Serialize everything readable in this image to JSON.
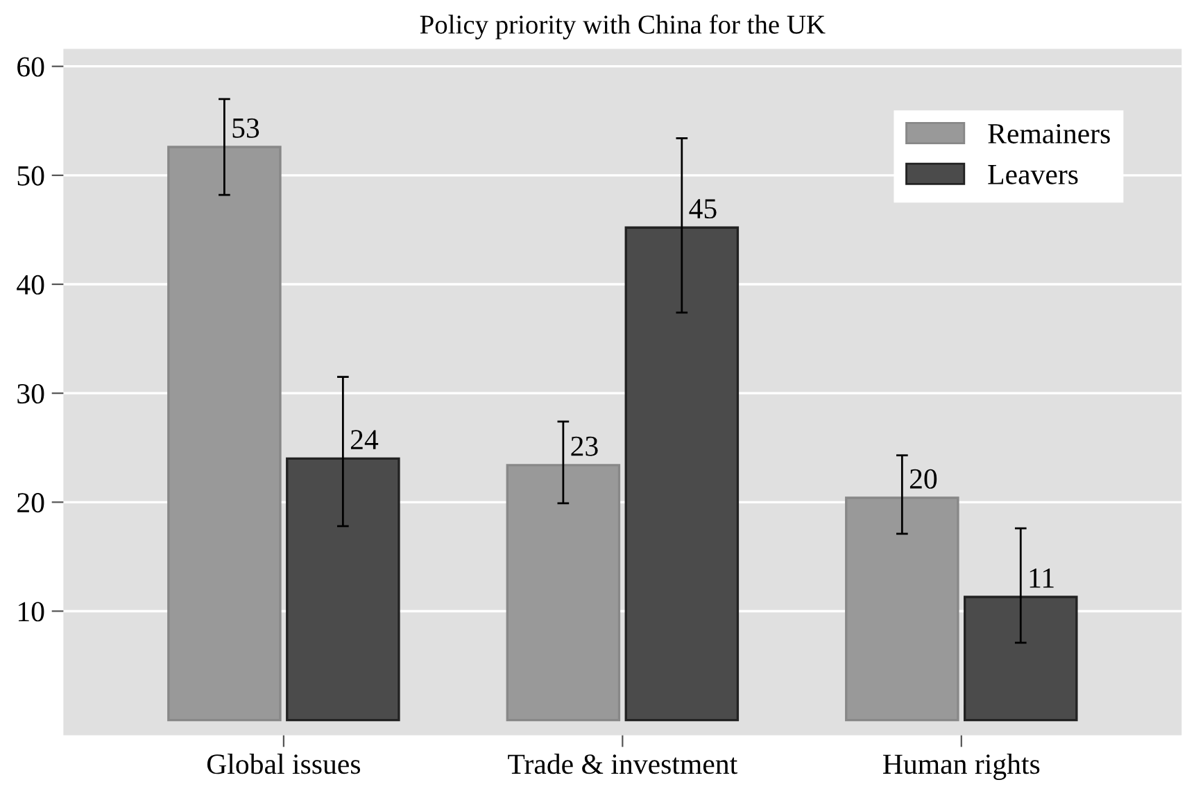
{
  "chart_data": {
    "type": "bar",
    "title": "Policy priority with China for the UK",
    "categories": [
      "Global issues",
      "Trade & investment",
      "Human rights"
    ],
    "series": [
      {
        "name": "Remainers",
        "color": "#999999",
        "values": [
          52.6,
          23.4,
          20.4
        ],
        "value_labels": [
          "53",
          "23",
          "20"
        ],
        "errors": [
          [
            48.2,
            57.0
          ],
          [
            19.9,
            27.4
          ],
          [
            17.1,
            24.3
          ]
        ]
      },
      {
        "name": "Leavers",
        "color": "#4b4b4b",
        "values": [
          24.0,
          45.2,
          11.3
        ],
        "value_labels": [
          "24",
          "45",
          "11"
        ],
        "errors": [
          [
            17.8,
            31.5
          ],
          [
            37.4,
            53.4
          ],
          [
            7.1,
            17.6
          ]
        ]
      }
    ],
    "ylim": [
      -1.4,
      61.6
    ],
    "yticks": [
      10,
      20,
      30,
      40,
      50,
      60
    ],
    "grid": "y",
    "legend": "top right"
  }
}
